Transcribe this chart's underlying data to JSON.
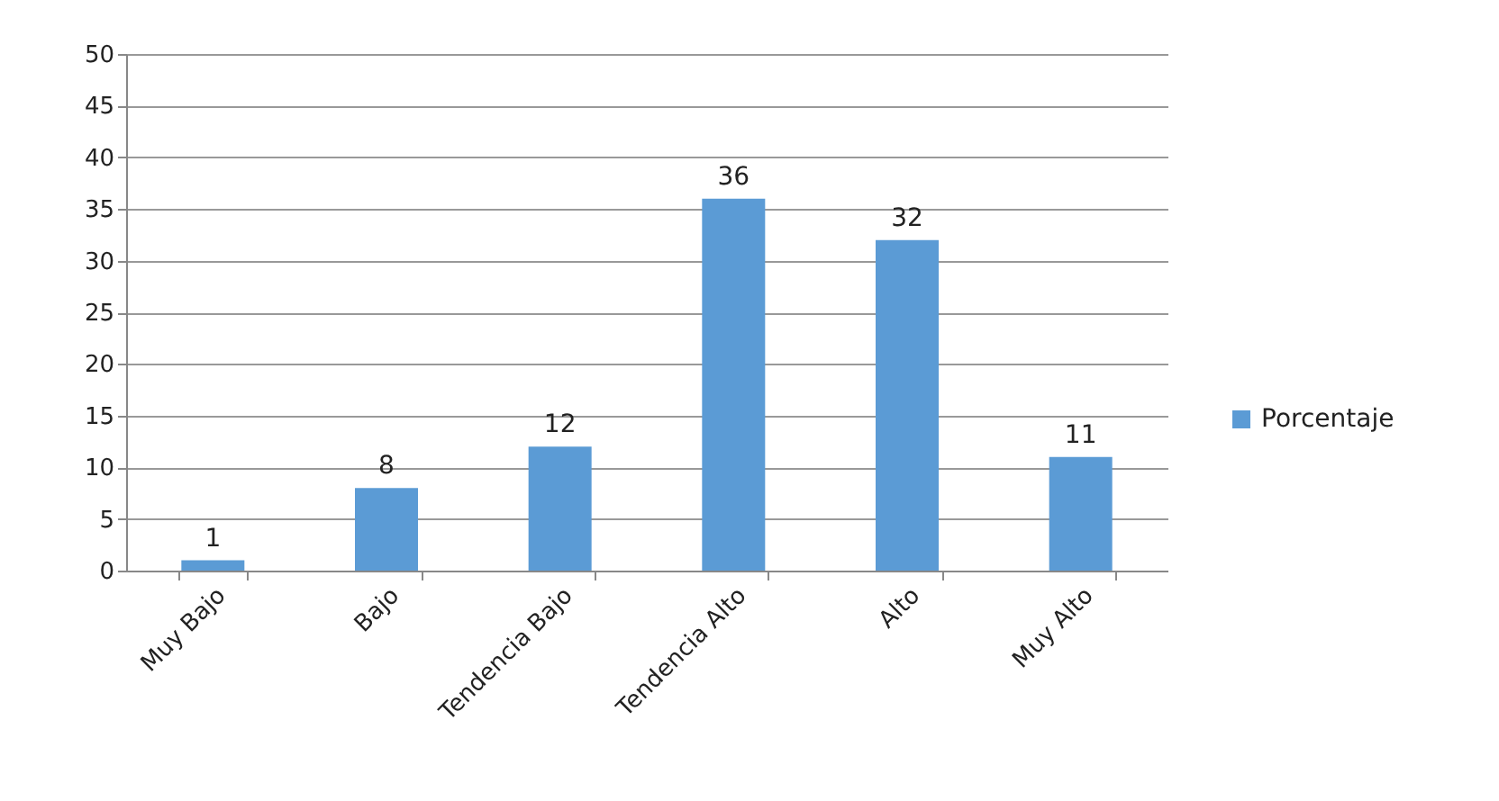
{
  "chart_data": {
    "type": "bar",
    "categories": [
      "Muy Bajo",
      "Bajo",
      "Tendencia Bajo",
      "Tendencia Alto",
      "Alto",
      "Muy Alto"
    ],
    "series": [
      {
        "name": "Porcentaje",
        "color": "#5b9bd5",
        "values": [
          1,
          8,
          12,
          36,
          32,
          11
        ]
      }
    ],
    "ylim": [
      0,
      50
    ],
    "yticks": [
      0,
      5,
      10,
      15,
      20,
      25,
      30,
      35,
      40,
      45,
      50
    ],
    "grid": "y",
    "legend": "right",
    "data_labels": true
  }
}
